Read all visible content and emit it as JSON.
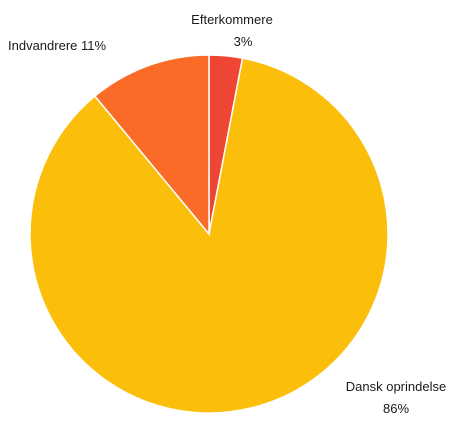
{
  "chart_data": {
    "type": "pie",
    "title": "",
    "slices": [
      {
        "label": "Efterkommere",
        "value": 3,
        "value_text": "3%",
        "color": "#ee4535"
      },
      {
        "label": "Dansk oprindelse",
        "value": 86,
        "value_text": "86%",
        "color": "#fbbf0b"
      },
      {
        "label": "Indvandrere",
        "value": 11,
        "value_text": "11%",
        "color": "#fb6b28"
      }
    ],
    "slice_border_color": "#ffffff",
    "start_angle": "top",
    "direction": "clockwise"
  }
}
